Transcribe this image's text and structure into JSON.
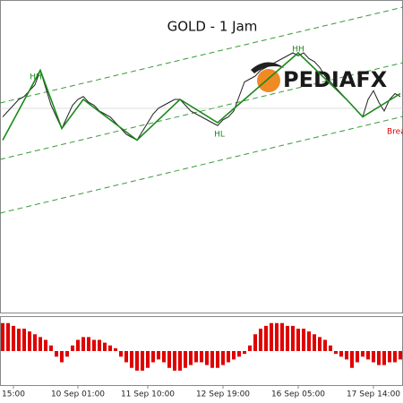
{
  "title": "GOLD - 1 Jam",
  "logo": "PEDIAFX",
  "annotations": [
    "HH",
    "HH",
    "HL",
    "Brea"
  ],
  "chart_data": [
    {
      "type": "line",
      "categories": [
        null,
        null,
        "15:00",
        null,
        null,
        null,
        null,
        null,
        null,
        null,
        null,
        null,
        null,
        null,
        "10 Sep 01:00",
        null,
        null,
        null,
        null,
        null,
        null,
        null,
        null,
        null,
        null,
        null,
        null,
        "11 Sep 10:00",
        null,
        null,
        null,
        null,
        null,
        null,
        null,
        null,
        null,
        null,
        null,
        null,
        null,
        "12 Sep 19:00",
        null,
        null,
        null,
        null,
        null,
        null,
        null,
        null,
        null,
        null,
        null,
        null,
        null,
        "16 Sep 05:00",
        null,
        null,
        null,
        null,
        null,
        null,
        null,
        null,
        null,
        null,
        null,
        null,
        null,
        "17 Sep 14:00",
        null,
        null,
        null,
        null,
        null
      ],
      "ylim": [
        0,
        100
      ],
      "series": [
        {
          "color": "#222222",
          "values": [
            66,
            68,
            70,
            72,
            73,
            75,
            77,
            82,
            76,
            70,
            66,
            62,
            66,
            70,
            72,
            73,
            71,
            70,
            68,
            67,
            66,
            64,
            62,
            60,
            59,
            58,
            61,
            64,
            67,
            69,
            70,
            71,
            72,
            72,
            70,
            68,
            67,
            66,
            65,
            64,
            63,
            65,
            66,
            68,
            73,
            78,
            79,
            80,
            82,
            83,
            84,
            85,
            86,
            87,
            88,
            87,
            88,
            86,
            85,
            83,
            80,
            78,
            76,
            74,
            72,
            70,
            68,
            66,
            72,
            75,
            71,
            68,
            72,
            74,
            73
          ]
        },
        {
          "color": "#1a8a1a",
          "x": [
            0,
            7,
            11,
            15,
            25,
            33,
            40,
            55,
            64,
            67,
            74
          ],
          "values": [
            58,
            82,
            62,
            72,
            58,
            72,
            64,
            88,
            72,
            66,
            74
          ]
        }
      ]
    },
    {
      "type": "bar",
      "color": "#e00000",
      "ylim": [
        -6,
        6
      ],
      "values": [
        5,
        5,
        4.5,
        4,
        4,
        3.5,
        3,
        2.5,
        2,
        1,
        -1,
        -2,
        -1,
        1,
        2,
        2.5,
        2.5,
        2,
        2,
        1.5,
        1,
        0.5,
        -1,
        -2,
        -3,
        -3.5,
        -3.5,
        -3,
        -2,
        -1.5,
        -2,
        -3,
        -3.5,
        -3.5,
        -3,
        -2.5,
        -2,
        -2,
        -2.5,
        -3,
        -3,
        -2.5,
        -2,
        -1.5,
        -1,
        -0.5,
        1,
        3,
        4,
        4.5,
        5,
        5,
        5,
        4.5,
        4.5,
        4,
        4,
        3.5,
        3,
        2.5,
        2,
        1,
        -0.5,
        -1,
        -1.5,
        -3,
        -2,
        -1,
        -1.5,
        -2,
        -2.5,
        -2.5,
        -2,
        -2,
        -1.5
      ]
    }
  ]
}
